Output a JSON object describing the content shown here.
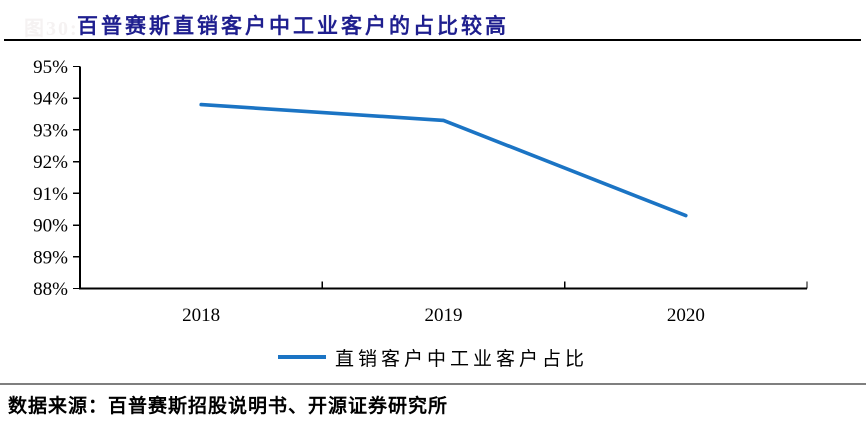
{
  "figure": {
    "ghost_label": "图30:",
    "title": "百普赛斯直销客户中工业客户的占比较高",
    "source": "数据来源：百普赛斯招股说明书、开源证券研究所"
  },
  "legend": {
    "label": "直销客户中工业客户占比"
  },
  "chart_data": {
    "type": "line",
    "title": "百普赛斯直销客户中工业客户的占比较高",
    "categories": [
      "2018",
      "2019",
      "2020"
    ],
    "series": [
      {
        "name": "直销客户中工业客户占比",
        "values": [
          93.8,
          93.3,
          90.3
        ]
      }
    ],
    "xlabel": "",
    "ylabel": "",
    "ylim": [
      88,
      95
    ],
    "y_ticks": [
      "88%",
      "89%",
      "90%",
      "91%",
      "92%",
      "93%",
      "94%",
      "95%"
    ],
    "grid": false,
    "legend_position": "bottom",
    "line_color": "#1b74c4",
    "axis_color": "#000000"
  },
  "colors": {
    "title_text": "#1f1f8f",
    "top_rule": "#000000",
    "bottom_rule": "#7f7f7f",
    "series_line": "#1b74c4"
  }
}
